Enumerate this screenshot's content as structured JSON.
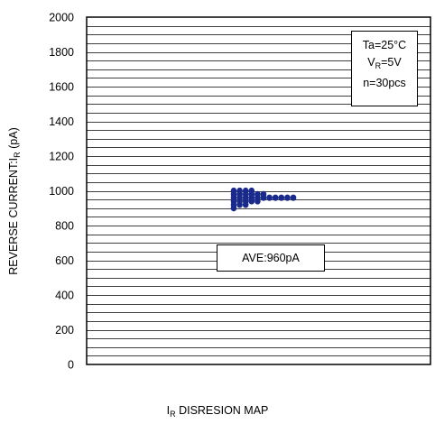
{
  "chart_data": {
    "type": "scatter",
    "ylabel": {
      "main": "REVERSE CURRENT:I",
      "sub": "R",
      "unit": " (pA)"
    },
    "xlabel": {
      "main": "I",
      "sub": "R",
      "rest": " DISRESION MAP"
    },
    "ylim": [
      0,
      2000
    ],
    "yticks": [
      0,
      200,
      400,
      600,
      800,
      1000,
      1200,
      1400,
      1600,
      1800,
      2000
    ],
    "minor_grid_step": 50,
    "grid": true,
    "point_color": "#1a2a8c",
    "series": [
      {
        "points": [
          {
            "x": 0,
            "y": 900
          },
          {
            "x": 0,
            "y": 920
          },
          {
            "x": 0,
            "y": 940
          },
          {
            "x": 0,
            "y": 960
          },
          {
            "x": 0,
            "y": 980
          },
          {
            "x": 0,
            "y": 1000
          },
          {
            "x": 1,
            "y": 920
          },
          {
            "x": 1,
            "y": 940
          },
          {
            "x": 1,
            "y": 960
          },
          {
            "x": 1,
            "y": 980
          },
          {
            "x": 1,
            "y": 1000
          },
          {
            "x": 2,
            "y": 920
          },
          {
            "x": 2,
            "y": 940
          },
          {
            "x": 2,
            "y": 960
          },
          {
            "x": 2,
            "y": 980
          },
          {
            "x": 2,
            "y": 1000
          },
          {
            "x": 3,
            "y": 940
          },
          {
            "x": 3,
            "y": 960
          },
          {
            "x": 3,
            "y": 980
          },
          {
            "x": 3,
            "y": 1000
          },
          {
            "x": 4,
            "y": 940
          },
          {
            "x": 4,
            "y": 960
          },
          {
            "x": 4,
            "y": 980
          },
          {
            "x": 5,
            "y": 960
          },
          {
            "x": 5,
            "y": 980
          },
          {
            "x": 6,
            "y": 960
          },
          {
            "x": 7,
            "y": 960
          },
          {
            "x": 8,
            "y": 960
          },
          {
            "x": 9,
            "y": 960
          },
          {
            "x": 10,
            "y": 960
          }
        ]
      }
    ],
    "annotations": {
      "conditions": [
        {
          "main": "Ta=25°C",
          "sub": "",
          "rest": ""
        },
        {
          "main": "V",
          "sub": "R",
          "rest": "=5V"
        },
        {
          "main": "n=30pcs",
          "sub": "",
          "rest": ""
        }
      ],
      "average": "AVE:960pA"
    }
  }
}
